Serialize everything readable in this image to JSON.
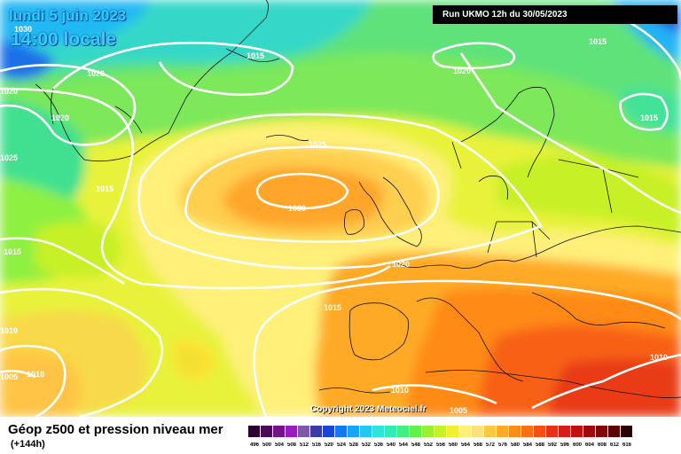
{
  "header": {
    "date": "lundi 5 juin 2023",
    "time": "14:00 locale",
    "run": "Run UKMO 12h du 30/05/2023"
  },
  "isobar_labels": [
    "1030",
    "1025",
    "1020",
    "1015",
    "1010",
    "1005"
  ],
  "map_labels": {
    "l1030_center": "1030",
    "l1030_topleft": "1030",
    "l1025_north": "1025",
    "l1025_west": "1025",
    "l1020_topleft": "1020",
    "l1020_west": "1020",
    "l1020_greenland": "1020",
    "l1020_north": "1020",
    "l1020_europe": "1020",
    "l1015_topright": "1015",
    "l1015_scand": "1015",
    "l1015_greenland": "1015",
    "l1015_west": "1015",
    "l1015_iberia": "1015",
    "l1015_left": "1015",
    "l1010_left": "1010",
    "l1010_azores": "1010",
    "l1010_africa": "1010",
    "l1010_east": "1010",
    "l1005_left": "1005",
    "l1005_south": "1005"
  },
  "copyright": "Copyright 2023 Meteociel.fr",
  "footer": {
    "title": "Géop z500 et pression niveau mer",
    "subtitle": "(+144h)"
  },
  "legend": {
    "ticks": [
      "496",
      "500",
      "504",
      "508",
      "512",
      "516",
      "520",
      "524",
      "528",
      "532",
      "536",
      "540",
      "544",
      "548",
      "552",
      "556",
      "560",
      "564",
      "568",
      "572",
      "576",
      "580",
      "584",
      "588",
      "592",
      "596",
      "600",
      "604",
      "608",
      "612",
      "616"
    ],
    "colors": [
      "#2a0030",
      "#4a0a55",
      "#72138a",
      "#9a1cc0",
      "#7a5aa8",
      "#3a3aa8",
      "#1a46d8",
      "#1478f0",
      "#16a4f8",
      "#22c8f0",
      "#30e2d8",
      "#30ecb0",
      "#40f080",
      "#62f04a",
      "#9af030",
      "#c8f028",
      "#f0f030",
      "#fff07a",
      "#ffe07a",
      "#ffc840",
      "#ffaa28",
      "#ff8c14",
      "#ff6e14",
      "#f85014",
      "#e83218",
      "#d81c1c",
      "#c01010",
      "#a00a0a",
      "#820808",
      "#5a0404",
      "#2a0202"
    ]
  }
}
